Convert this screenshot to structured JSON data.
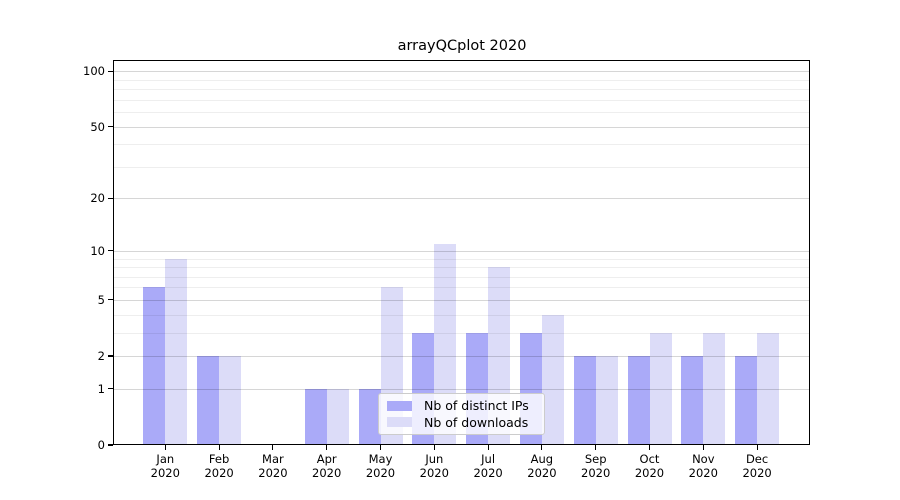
{
  "chart_data": {
    "type": "bar",
    "title": "arrayQCplot 2020",
    "year": "2020",
    "categories": [
      "Jan",
      "Feb",
      "Mar",
      "Apr",
      "May",
      "Jun",
      "Jul",
      "Aug",
      "Sep",
      "Oct",
      "Nov",
      "Dec"
    ],
    "series": [
      {
        "name": "Nb of distinct IPs",
        "color": "#aaaaf8",
        "values": [
          6,
          2,
          0,
          1,
          1,
          3,
          3,
          3,
          2,
          2,
          2,
          2
        ]
      },
      {
        "name": "Nb of downloads",
        "color": "#dcdcf8",
        "values": [
          9,
          2,
          0,
          1,
          6,
          11,
          8,
          4,
          2,
          3,
          3,
          3
        ]
      }
    ],
    "yticks": [
      0,
      1,
      2,
      5,
      10,
      20,
      50,
      100
    ],
    "yticks_minor": [
      3,
      4,
      6,
      7,
      8,
      9,
      30,
      40,
      60,
      70,
      80,
      90
    ],
    "ylim": [
      0,
      115
    ],
    "yscale": "log1p",
    "grid": true,
    "legend_position": "lower center"
  }
}
